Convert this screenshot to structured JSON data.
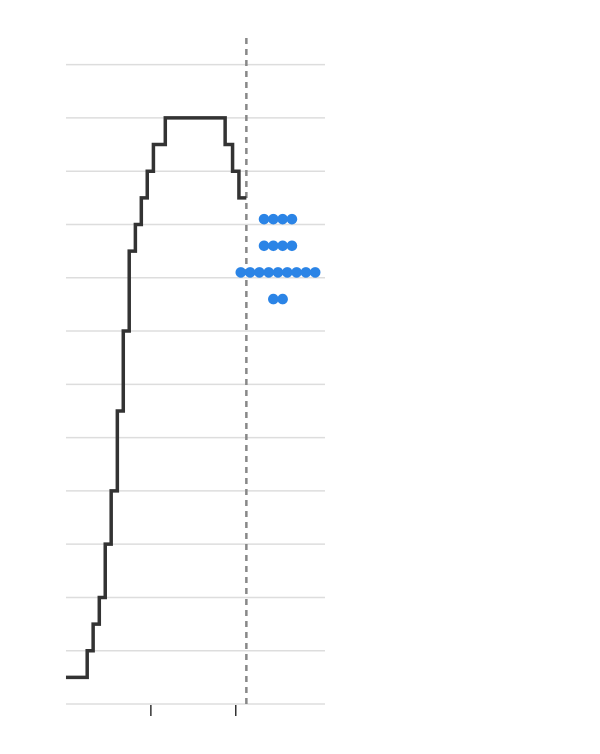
{
  "chart_data": {
    "type": "line",
    "title": "",
    "xlabel": "",
    "ylabel": "",
    "grid": true,
    "colors": {
      "step_line": "#333333",
      "dots": "#2b84e6",
      "gridline": "#dddddd",
      "divider": "#888888",
      "axis_tick": "#333333"
    },
    "step_series": {
      "x": [
        0,
        1.0,
        1.28,
        1.57,
        1.85,
        2.13,
        2.42,
        2.7,
        2.98,
        3.27,
        3.55,
        3.83,
        4.12,
        4.68,
        7.5,
        7.85,
        8.15,
        8.5
      ],
      "y": [
        1,
        2,
        3,
        4,
        6,
        8,
        11,
        14,
        17,
        18,
        19,
        20,
        21,
        22,
        21,
        20,
        19,
        19
      ]
    },
    "x_ticks": [
      4,
      8
    ],
    "xlim": [
      -0.8,
      12.3
    ],
    "ylim": [
      0,
      25
    ],
    "divider_x": 8.5,
    "dots": [
      {
        "y": 18.2,
        "count": 4
      },
      {
        "y": 17.2,
        "count": 4
      },
      {
        "y": 16.2,
        "count": 9
      },
      {
        "y": 15.2,
        "count": 2
      }
    ]
  }
}
